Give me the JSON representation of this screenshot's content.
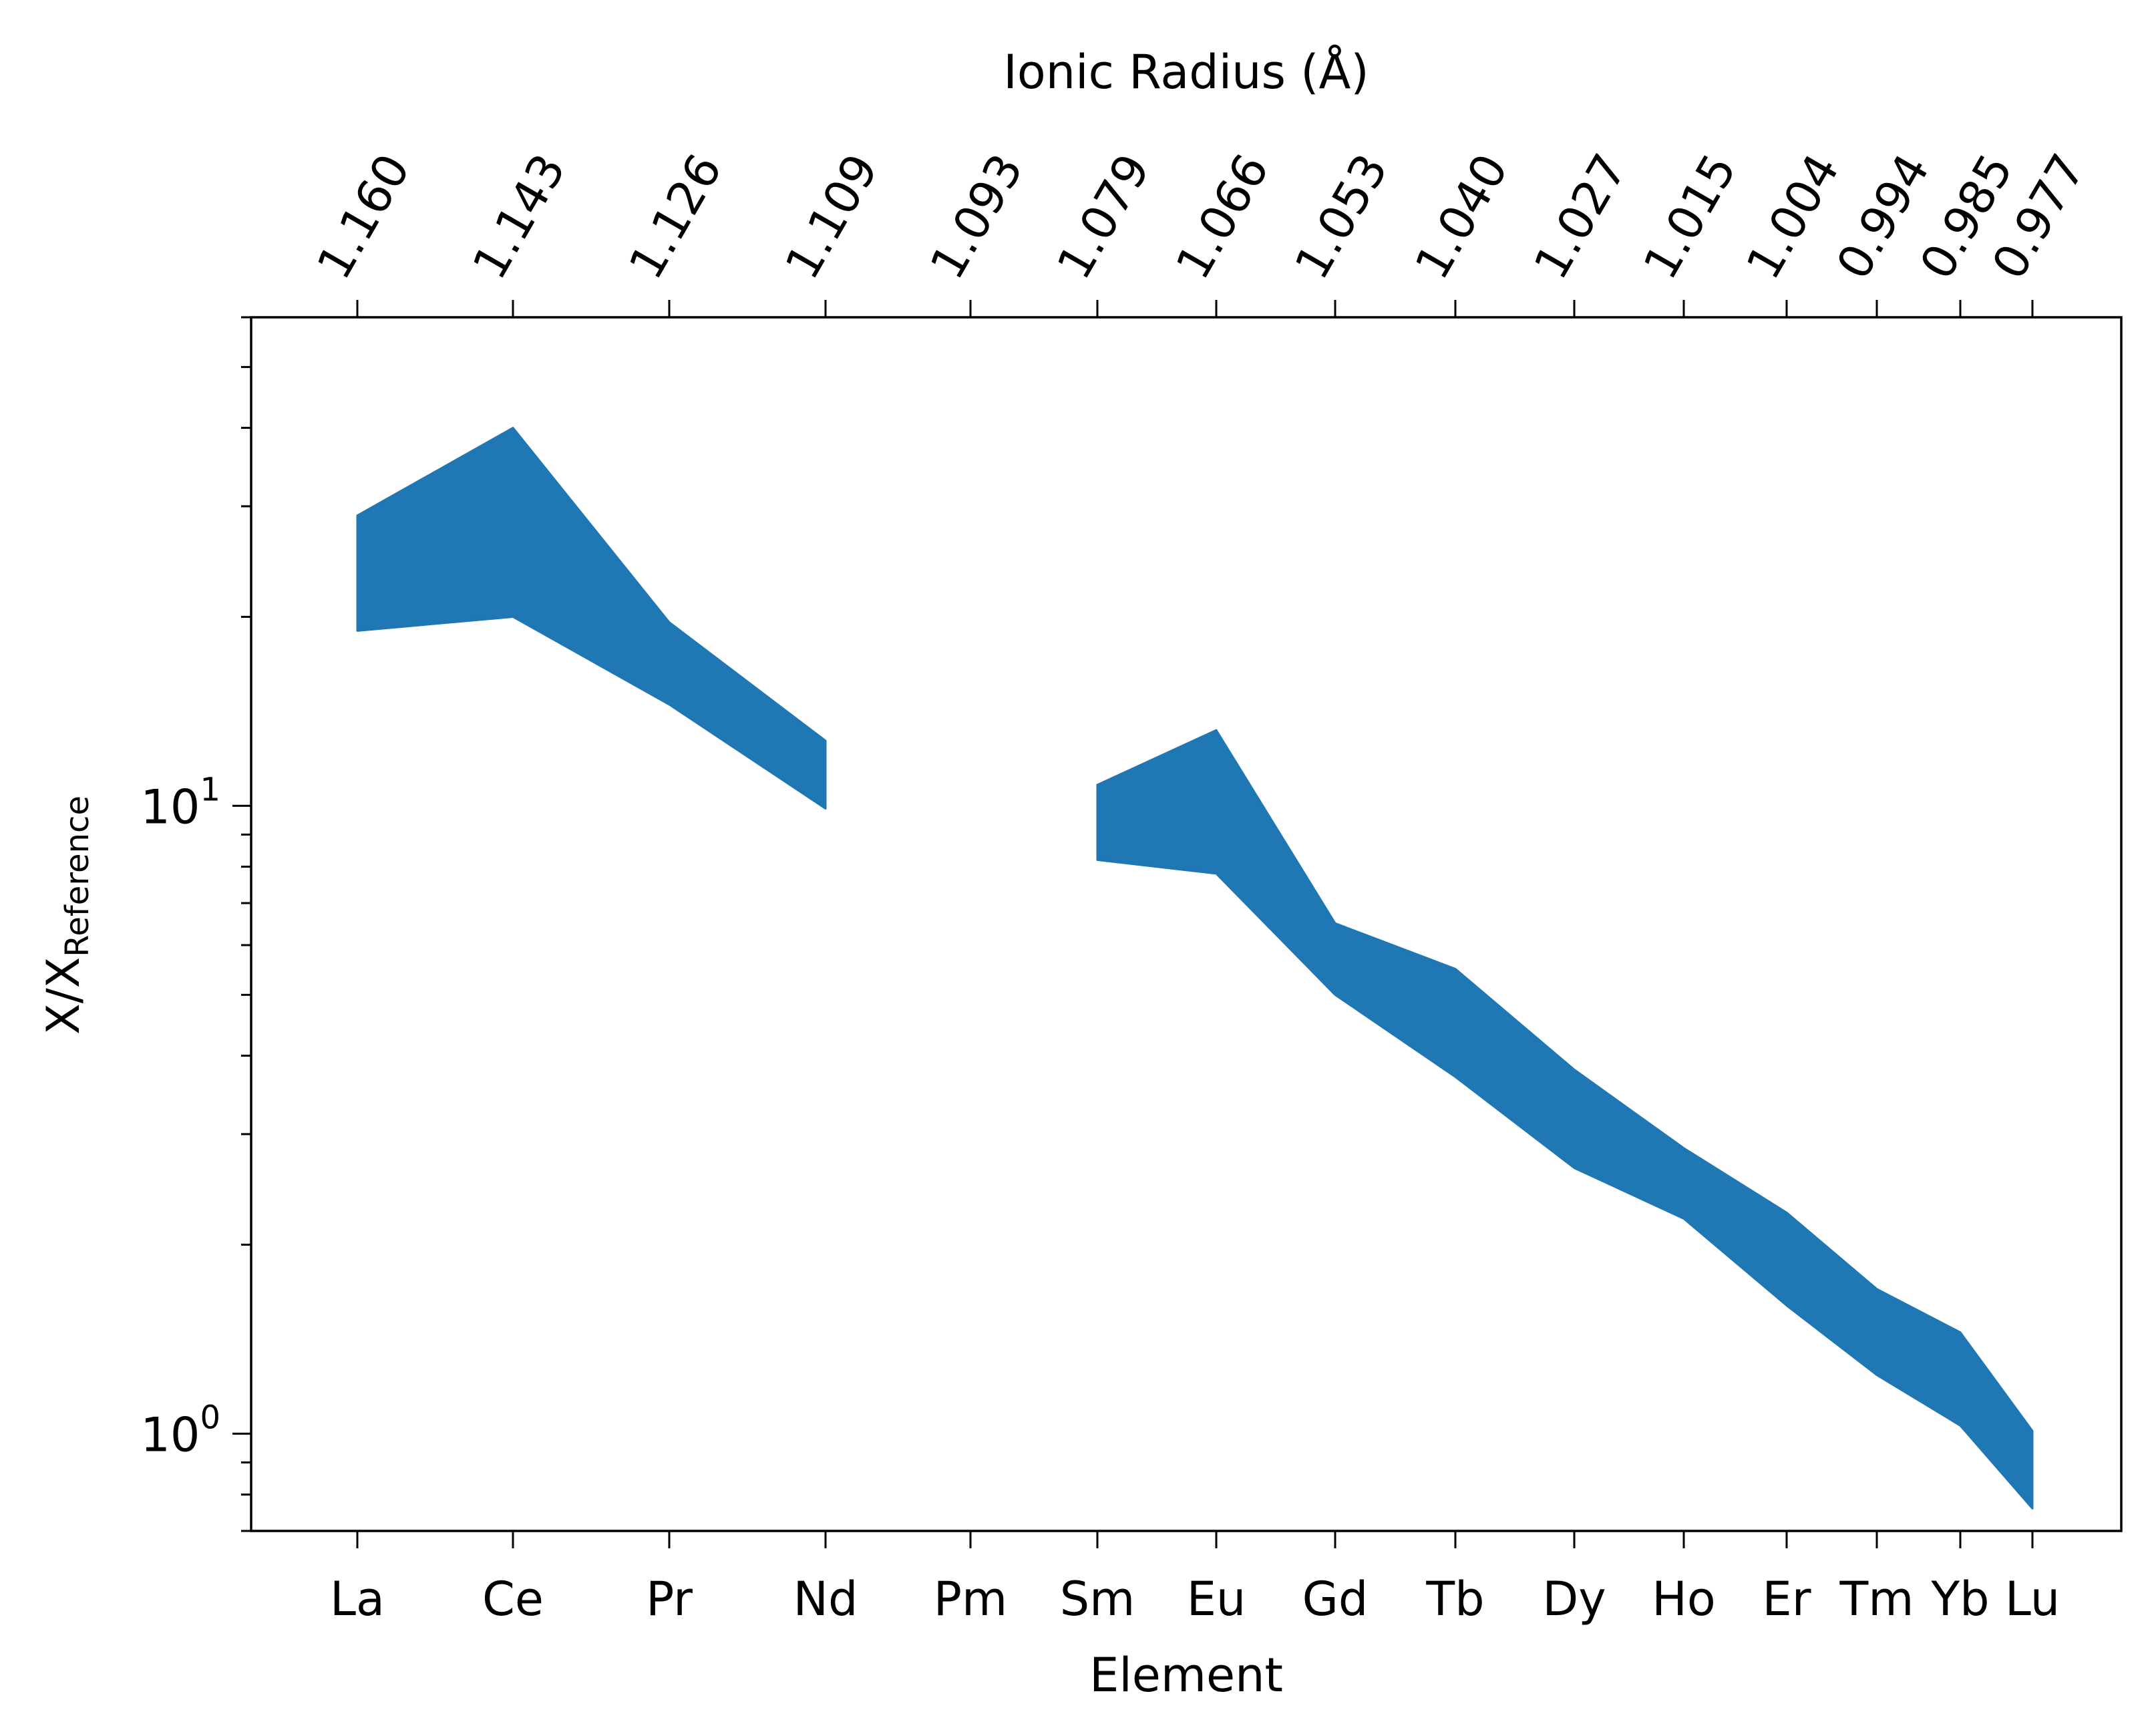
{
  "chart_data": {
    "type": "area",
    "title": "",
    "xlabel": "Element",
    "ylabel": "X/X",
    "ylabel_subscript": "Reference",
    "top_xlabel": "Ionic Radius (Å)",
    "yscale": "log",
    "ylim": [
      0.7,
      60
    ],
    "y_ticks": [
      {
        "value": 1,
        "base": "10",
        "exp": "0"
      },
      {
        "value": 10,
        "base": "10",
        "exp": "1"
      }
    ],
    "categories": [
      "La",
      "Ce",
      "Pr",
      "Nd",
      "Pm",
      "Sm",
      "Eu",
      "Gd",
      "Tb",
      "Dy",
      "Ho",
      "Er",
      "Tm",
      "Yb",
      "Lu"
    ],
    "ionic_radius": [
      1.16,
      1.143,
      1.126,
      1.109,
      1.093,
      1.079,
      1.066,
      1.053,
      1.04,
      1.027,
      1.015,
      1.004,
      0.994,
      0.985,
      0.977
    ],
    "ionic_radius_labels": [
      "1.160",
      "1.143",
      "1.126",
      "1.109",
      "1.093",
      "1.079",
      "1.066",
      "1.053",
      "1.040",
      "1.027",
      "1.015",
      "1.004",
      "0.994",
      "0.985",
      "0.977"
    ],
    "band": {
      "lower": [
        19,
        20,
        14.5,
        9.9,
        null,
        8.2,
        7.8,
        5,
        3.7,
        2.65,
        2.2,
        1.6,
        1.24,
        1.03,
        0.76
      ],
      "upper": [
        29,
        40,
        19.6,
        12.7,
        null,
        10.8,
        13.2,
        6.5,
        5.5,
        3.8,
        2.85,
        2.25,
        1.7,
        1.45,
        1.01
      ]
    },
    "fill_color": "#1f77b4",
    "grid": false,
    "legend": "none"
  }
}
